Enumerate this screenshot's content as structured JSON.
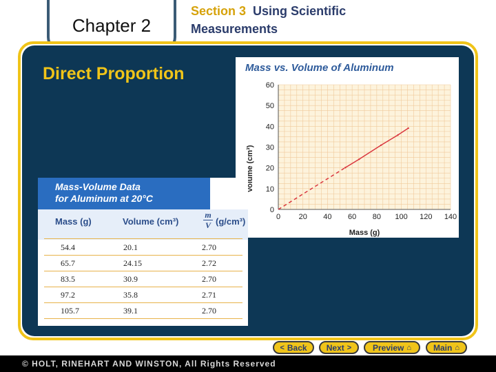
{
  "header": {
    "chapter": "Chapter 2",
    "section_number": "Section 3",
    "section_title_line1": "Using Scientific",
    "section_title_line2": "Measurements"
  },
  "slide": {
    "title": "Direct Proportion"
  },
  "chart_data": {
    "type": "line",
    "title": "Mass vs. Volume of Aluminum",
    "xlabel": "Mass (g)",
    "ylabel": "Volume (cm³)",
    "xlim": [
      0,
      140
    ],
    "ylim": [
      0,
      60
    ],
    "x_ticks": [
      "0",
      "20",
      "40",
      "60",
      "80",
      "100",
      "120",
      "140"
    ],
    "y_ticks": [
      "0",
      "10",
      "20",
      "30",
      "40",
      "50",
      "60"
    ],
    "grid": true,
    "series": [
      {
        "values": [
          [
            0,
            0
          ],
          [
            54.4,
            20.1
          ],
          [
            65.7,
            24.15
          ],
          [
            83.5,
            30.9
          ],
          [
            97.2,
            35.8
          ],
          [
            105.7,
            39.1
          ]
        ],
        "color": "#d9363e"
      }
    ]
  },
  "table": {
    "title_line1": "Mass-Volume Data",
    "title_line2": "for Aluminum at 20°C",
    "headers": [
      "Mass (g)",
      "Volume (cm³)",
      "(g/cm³)"
    ],
    "ratio_num": "m",
    "ratio_den": "V",
    "rows": [
      [
        "54.4",
        "20.1",
        "2.70"
      ],
      [
        "65.7",
        "24.15",
        "2.72"
      ],
      [
        "83.5",
        "30.9",
        "2.70"
      ],
      [
        "97.2",
        "35.8",
        "2.71"
      ],
      [
        "105.7",
        "39.1",
        "2.70"
      ]
    ]
  },
  "nav": {
    "back": "Back",
    "next": "Next",
    "preview": "Preview",
    "main": "Main"
  },
  "footer": {
    "copyright": "© HOLT, RINEHART AND WINSTON, All Rights Reserved"
  },
  "colors": {
    "accent": "#f0c419",
    "panel": "#0d3755",
    "table_header": "#2a6dc0"
  }
}
